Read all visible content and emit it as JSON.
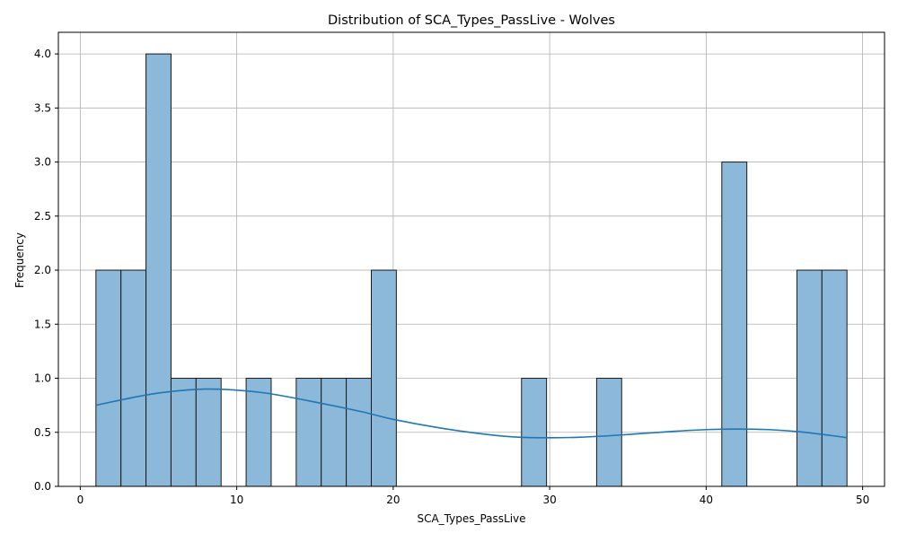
{
  "chart_data": {
    "type": "bar",
    "subtype": "histogram",
    "title": "Distribution of SCA_Types_PassLive - Wolves",
    "xlabel": "SCA_Types_PassLive",
    "ylabel": "Frequency",
    "xlim": [
      -1.4,
      51.4
    ],
    "ylim": [
      0,
      4.2
    ],
    "xticks": [
      0,
      10,
      20,
      30,
      40,
      50
    ],
    "yticks": [
      0.0,
      0.5,
      1.0,
      1.5,
      2.0,
      2.5,
      3.0,
      3.5,
      4.0
    ],
    "ytick_labels": [
      "0.0",
      "0.5",
      "1.0",
      "1.5",
      "2.0",
      "2.5",
      "3.0",
      "3.5",
      "4.0"
    ],
    "grid": true,
    "bar_color": "#8cb8da",
    "bar_edge_color": "#1a1a1a",
    "kde_color": "#1f77b4",
    "bins": [
      {
        "x0": 1.0,
        "x1": 2.6,
        "count": 2
      },
      {
        "x0": 2.6,
        "x1": 4.2,
        "count": 2
      },
      {
        "x0": 4.2,
        "x1": 5.8,
        "count": 4
      },
      {
        "x0": 5.8,
        "x1": 7.4,
        "count": 1
      },
      {
        "x0": 7.4,
        "x1": 9.0,
        "count": 1
      },
      {
        "x0": 9.0,
        "x1": 10.6,
        "count": 0
      },
      {
        "x0": 10.6,
        "x1": 12.2,
        "count": 1
      },
      {
        "x0": 12.2,
        "x1": 13.8,
        "count": 0
      },
      {
        "x0": 13.8,
        "x1": 15.4,
        "count": 1
      },
      {
        "x0": 15.4,
        "x1": 17.0,
        "count": 1
      },
      {
        "x0": 17.0,
        "x1": 18.6,
        "count": 1
      },
      {
        "x0": 18.6,
        "x1": 20.2,
        "count": 2
      },
      {
        "x0": 20.2,
        "x1": 21.8,
        "count": 0
      },
      {
        "x0": 21.8,
        "x1": 23.4,
        "count": 0
      },
      {
        "x0": 23.4,
        "x1": 25.0,
        "count": 0
      },
      {
        "x0": 25.0,
        "x1": 26.6,
        "count": 0
      },
      {
        "x0": 26.6,
        "x1": 28.2,
        "count": 0
      },
      {
        "x0": 28.2,
        "x1": 29.8,
        "count": 1
      },
      {
        "x0": 29.8,
        "x1": 31.4,
        "count": 0
      },
      {
        "x0": 31.4,
        "x1": 33.0,
        "count": 0
      },
      {
        "x0": 33.0,
        "x1": 34.6,
        "count": 1
      },
      {
        "x0": 34.6,
        "x1": 36.2,
        "count": 0
      },
      {
        "x0": 36.2,
        "x1": 37.8,
        "count": 0
      },
      {
        "x0": 37.8,
        "x1": 39.4,
        "count": 0
      },
      {
        "x0": 39.4,
        "x1": 41.0,
        "count": 0
      },
      {
        "x0": 41.0,
        "x1": 42.6,
        "count": 3
      },
      {
        "x0": 42.6,
        "x1": 44.2,
        "count": 0
      },
      {
        "x0": 44.2,
        "x1": 45.8,
        "count": 0
      },
      {
        "x0": 45.8,
        "x1": 47.4,
        "count": 2
      },
      {
        "x0": 47.4,
        "x1": 49.0,
        "count": 2
      }
    ],
    "kde": {
      "x": [
        1,
        4,
        6,
        8,
        10,
        12,
        15,
        18,
        20,
        23,
        26,
        28,
        30,
        32,
        34,
        36,
        38,
        40,
        42,
        44,
        46,
        48,
        49
      ],
      "y": [
        0.75,
        0.84,
        0.88,
        0.9,
        0.89,
        0.86,
        0.78,
        0.69,
        0.62,
        0.54,
        0.48,
        0.455,
        0.45,
        0.455,
        0.47,
        0.49,
        0.51,
        0.525,
        0.53,
        0.525,
        0.505,
        0.47,
        0.45
      ]
    }
  }
}
